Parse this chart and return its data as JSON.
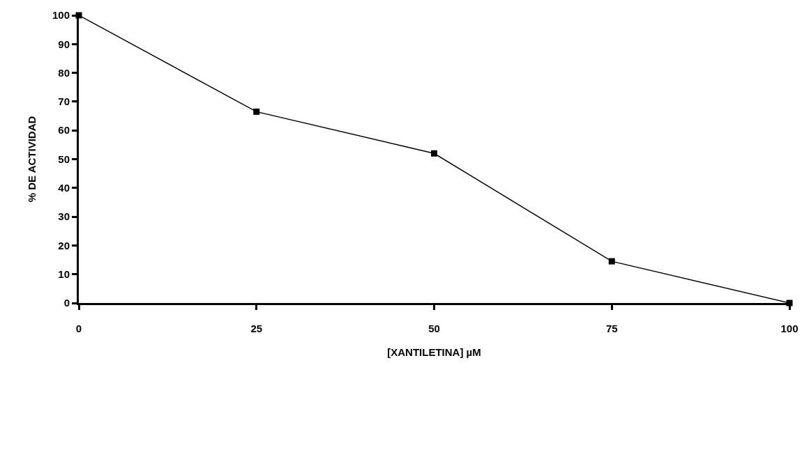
{
  "chart_data": {
    "type": "line",
    "xlabel": "[XANTILETINA] µM",
    "ylabel": "% DE ACTIVIDAD",
    "x": [
      0,
      25,
      50,
      75,
      100
    ],
    "series": [
      {
        "color": "#000000",
        "values": [
          100,
          66.5,
          52,
          14.5,
          0
        ]
      }
    ],
    "xlim": [
      0,
      100
    ],
    "xticks": [
      0,
      25,
      50,
      75,
      100
    ],
    "ylim": [
      0,
      100
    ],
    "yticks": [
      0,
      10,
      20,
      30,
      40,
      50,
      60,
      70,
      80,
      90,
      100
    ],
    "grid": false,
    "marker": "square",
    "line_style": "solid"
  }
}
